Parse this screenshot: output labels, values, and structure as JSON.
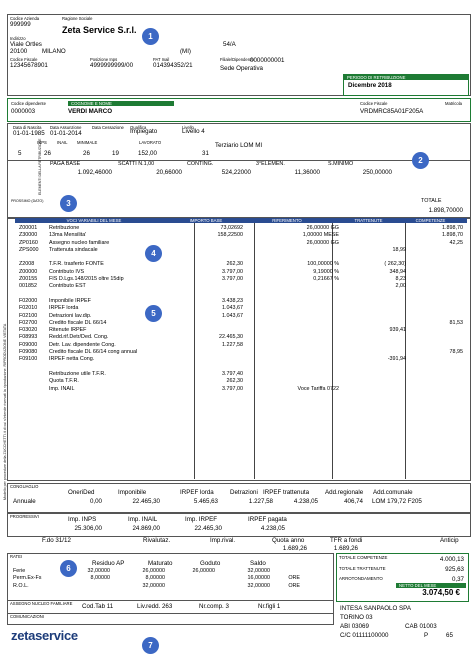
{
  "header": {
    "codice_azienda_lbl": "Codice Azienda",
    "codice_azienda": "999999",
    "ragione_sociale_lbl": "Ragione Sociale",
    "ragione_sociale": "Zeta Service S.r.l.",
    "indirizzo_lbl": "Indirizzo",
    "indirizzo": "Viale Ortles",
    "civico": "54/A",
    "cap": "20100",
    "citta": "MILANO",
    "prov": "(MI)",
    "cod_fisc_lbl": "Codice Fiscale",
    "cod_fisc": "12345678901",
    "pos_inps_lbl": "Posizione Inps",
    "pos_inps": "4999999999/00",
    "pat_inail_lbl": "PAT Inail",
    "pat_inail": "014394352/21",
    "filiale_lbl": "Filiale/Dipendenza",
    "filiale": "0000000001",
    "sede": "Sede Operativa",
    "periodo_lbl": "PERIODO DI RETRIBUZIONE",
    "periodo": "Dicembre 2018"
  },
  "employee": {
    "codice_lbl": "Codice dipendente",
    "codice": "0000003",
    "nome_lbl": "COGNOME E NOME",
    "nome": "VERDI MARCO",
    "cf_lbl": "Codice Fiscale",
    "cf": "VRDMRC85A01F205A",
    "matricola_lbl": "Matricola",
    "nascita_lbl": "Data di Nascita",
    "nascita": "01-01-1985",
    "assunzione_lbl": "Data Assunzione",
    "assunzione": "01-01-2014",
    "cessazione_lbl": "Data Cessazione",
    "qualifica_lbl": "Qualifica",
    "qualifica": "Impiegato",
    "livello_lbl": "Livello",
    "livello": "Livello 4",
    "inps_lbl": "INPS",
    "inail_lbl": "INAIL",
    "minimale_lbl": "MINIMALE",
    "lavorato_lbl": "LAVORATO",
    "row_vals": [
      "5",
      "26",
      "26",
      "19",
      "152,00",
      "31"
    ],
    "contratto": "Terziario LOM MI"
  },
  "elements": {
    "side_lbl": "ELEMENTI DELLA RETRIBUZIONE",
    "headers": [
      "PAGA BASE",
      "SCATTI N.1,00",
      "CONTING.",
      "3°ELEMEN.",
      "S.MINIMO"
    ],
    "values": [
      "1.092,46000",
      "20,66000",
      "524,22000",
      "11,36000",
      "250,00000"
    ],
    "prossimo_lbl": "PROSSIMO (DATO)",
    "totale_lbl": "TOTALE",
    "totale": "1.898,70000"
  },
  "table": {
    "headers": [
      "VOCI VARIABILI DEL MESE",
      "IMPORTO BASE",
      "RIFERIMENTO",
      "TRATTENUTE",
      "COMPETENZE"
    ],
    "rows": [
      [
        "Z00001",
        "Retribuzione",
        "73,02692",
        "26,00000 GG",
        "",
        "1.898,70"
      ],
      [
        "Z30000",
        "13ma Mensilita'",
        "158,22500",
        "1,00000 MESE",
        "",
        "1.898,70"
      ],
      [
        "ZP0160",
        "Assegno nucleo familiare",
        "",
        "26,00000 GG",
        "",
        "42,25"
      ],
      [
        "ZPS000",
        "Trattenuta sindacale",
        "",
        "",
        "18,99",
        ""
      ],
      [
        "",
        "",
        "",
        "",
        "",
        ""
      ],
      [
        "Z2008",
        "T.F.R. trasferto FONTE",
        "262,30",
        "100,00000 %",
        "( 262,30)",
        ""
      ],
      [
        "Z00000",
        "Contributo IVS",
        "3.797,00",
        "9,19000 %",
        "348,94",
        ""
      ],
      [
        "Z00155",
        "FIS D.Lgs.148/2015 oltre 15dip",
        "3.797,00",
        "0,21667 %",
        "8,23",
        ""
      ],
      [
        "001852",
        "Contributo EST",
        "",
        "",
        "2,00",
        ""
      ],
      [
        "",
        "",
        "",
        "",
        "",
        ""
      ],
      [
        "F02000",
        "Imponibile IRPEF",
        "3.438,23",
        "",
        "",
        ""
      ],
      [
        "F02010",
        "IRPEF lorda",
        "1.043,67",
        "",
        "",
        ""
      ],
      [
        "F02100",
        "Detrazioni lav.dip.",
        "1.043,67",
        "",
        "",
        ""
      ],
      [
        "F02700",
        "Credito fiscale DL 66/14",
        "",
        "",
        "",
        "81,53"
      ],
      [
        "F03020",
        "Ritenute IRPEF",
        "",
        "",
        "939,41",
        ""
      ],
      [
        "F08993",
        "Redd.rif.Detr/Ded.  Cong.",
        "22.465,30",
        "",
        "",
        ""
      ],
      [
        "F09000",
        "Detr. Lav. dipendente Cong.",
        "1.227,58",
        "",
        "",
        ""
      ],
      [
        "F09080",
        "Credito fiscale DL 66/14 cong annual",
        "",
        "",
        "",
        "78,95"
      ],
      [
        "F09100",
        "IRPEF netta          Cong.",
        "",
        "",
        "-391,94",
        ""
      ],
      [
        "",
        "",
        "",
        "",
        "",
        ""
      ],
      [
        "",
        "Retribuzione utile T.F.R.",
        "3.797,40",
        "",
        "",
        ""
      ],
      [
        "",
        "Quota T.F.R.",
        "262,30",
        "",
        "",
        ""
      ],
      [
        "",
        "Imp. INAIL",
        "3.797,00",
        "Voce Tariffa   0722",
        "",
        ""
      ]
    ]
  },
  "conguaglio": {
    "lbl": "CONGUAGLIO",
    "headers": [
      "OneriDed",
      "Imponibile",
      "IRPEF lorda",
      "Detrazioni",
      "IRPEF trattenuta",
      "Add.regionale",
      "Add.comunale"
    ],
    "annuale_lbl": "Annuale",
    "values": [
      "0,00",
      "22.465,30",
      "5.465,63",
      "1.227,58",
      "4.238,05",
      "406,74",
      "LOM   179,72  F205"
    ]
  },
  "progressivi": {
    "lbl": "PROGRESSIVI",
    "headers": [
      "Imp. INPS",
      "Imp. INAIL",
      "Imp. IRPEF",
      "IRPEF pagata"
    ],
    "values": [
      "25.306,00",
      "24.869,00",
      "22.465,30",
      "4.238,05"
    ]
  },
  "tfr": {
    "fdo_lbl": "F.do 31/12",
    "rival_lbl": "Rivalutaz.",
    "imp_rival_lbl": "Imp.rival.",
    "quota_anno_lbl": "Quota anno",
    "quota_anno": "1.689,26",
    "fondi_lbl": "TFR a fondi",
    "fondi": "1.689,26",
    "anticip_lbl": "Anticip"
  },
  "ratei": {
    "lbl": "RATEI",
    "headers": [
      "Residuo AP",
      "Maturato",
      "Goduto",
      "Saldo"
    ],
    "rows": [
      [
        "Ferie",
        "32,00000",
        "26,00000",
        "26,00000",
        "32,00000",
        ""
      ],
      [
        "Perm.Ex-Fs",
        "8,00000",
        "8,00000",
        "",
        "16,00000",
        "ORE"
      ],
      [
        "R.O.L.",
        "",
        "32,00000",
        "",
        "32,00000",
        "ORE"
      ]
    ]
  },
  "familiari": {
    "lbl": "ASSEGNO NUCLEO FAMILIARE",
    "cod_tab": "Cod.Tab   11",
    "liv_redd": "Liv.redd.  263",
    "nr_comp": "Nr.comp.  3",
    "nr_figli": "Nr.figli  1"
  },
  "comunicazioni_lbl": "COMUNICAZIONI",
  "totals": {
    "competenze_lbl": "TOTALE COMPETENZE",
    "competenze": "4.000,13",
    "trattenute_lbl": "TOTALE TRATTENUTE",
    "trattenute": "925,63",
    "arrot_lbl": "ARROTONDAMENTO",
    "arrot": "0,37",
    "netto_lbl": "NETTO DEL MESE",
    "netto": "3.074,50 €"
  },
  "bank": {
    "name": "INTESA SANPAOLO SPA",
    "city": "TORINO 03",
    "abi": "ABI    03069",
    "cab": "CAB   01003",
    "cc": "C/C    01111100000",
    "p": "P",
    "page": "65"
  },
  "logo": "zetaservice",
  "side_text": "Modello per procedure della ZUCCHETTI.it di cui s'intende riservati la riproduzione. RIPRODUZIONE VIETATA",
  "markers": [
    "1",
    "2",
    "3",
    "4",
    "5",
    "6",
    "7"
  ]
}
